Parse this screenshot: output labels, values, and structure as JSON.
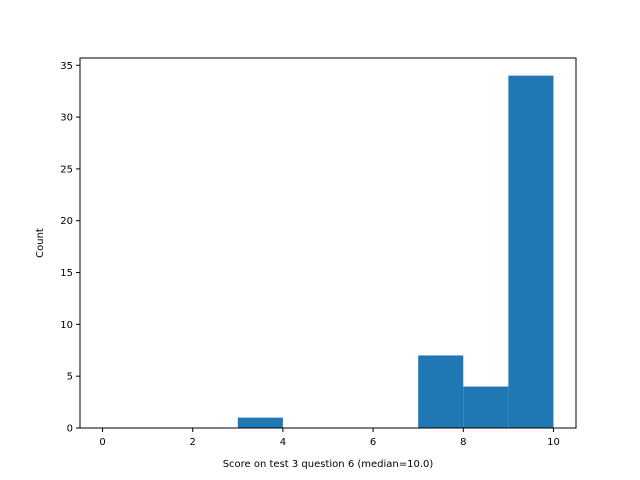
{
  "chart_data": {
    "type": "bar",
    "title": "",
    "xlabel": "Score on test 3 question 6 (median=10.0)",
    "ylabel": "Count",
    "bins": [
      {
        "start": 0,
        "end": 1,
        "count": 0
      },
      {
        "start": 1,
        "end": 2,
        "count": 0
      },
      {
        "start": 2,
        "end": 3,
        "count": 0
      },
      {
        "start": 3,
        "end": 4,
        "count": 1
      },
      {
        "start": 4,
        "end": 5,
        "count": 0
      },
      {
        "start": 5,
        "end": 6,
        "count": 0
      },
      {
        "start": 6,
        "end": 7,
        "count": 0
      },
      {
        "start": 7,
        "end": 8,
        "count": 7
      },
      {
        "start": 8,
        "end": 9,
        "count": 4
      },
      {
        "start": 9,
        "end": 10,
        "count": 34
      }
    ],
    "xlim": [
      -0.5,
      10.5
    ],
    "ylim": [
      0,
      35.7
    ],
    "xticks": [
      0,
      2,
      4,
      6,
      8,
      10
    ],
    "yticks": [
      0,
      5,
      10,
      15,
      20,
      25,
      30,
      35
    ],
    "grid": false,
    "bar_color": "#1f77b4"
  }
}
